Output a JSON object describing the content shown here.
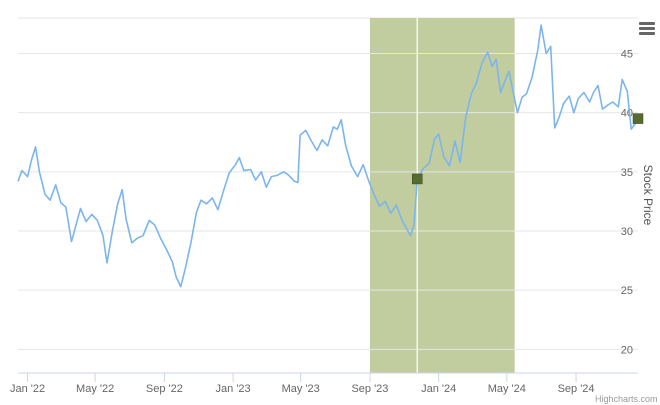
{
  "chart_data": {
    "type": "line",
    "title": "",
    "xlabel": "",
    "ylabel": "Stock Price",
    "ylim": [
      18,
      48
    ],
    "xlim": [
      "2021-12-15",
      "2024-12-20"
    ],
    "grid": "horizontal",
    "x_ticks": [
      {
        "date": "2022-01-01",
        "label": "Jan '22"
      },
      {
        "date": "2022-05-01",
        "label": "May '22"
      },
      {
        "date": "2022-09-01",
        "label": "Sep '22"
      },
      {
        "date": "2023-01-01",
        "label": "Jan '23"
      },
      {
        "date": "2023-05-01",
        "label": "May '23"
      },
      {
        "date": "2023-09-01",
        "label": "Sep '23"
      },
      {
        "date": "2024-01-01",
        "label": "Jan '24"
      },
      {
        "date": "2024-05-01",
        "label": "May '24"
      },
      {
        "date": "2024-09-01",
        "label": "Sep '24"
      }
    ],
    "y_ticks": [
      20,
      25,
      30,
      35,
      40,
      45
    ],
    "highlight_band": {
      "from": "2023-09-01",
      "to": "2024-05-15",
      "color": "#c1cd9f"
    },
    "vertical_marker": "2023-11-24",
    "markers": [
      {
        "date": "2023-11-24",
        "value": 34.4,
        "color": "#556b2f"
      },
      {
        "date": "2024-12-20",
        "value": 39.5,
        "color": "#556b2f"
      }
    ],
    "series": [
      {
        "color": "#7cb5ec",
        "points": [
          [
            "2021-12-15",
            34.2
          ],
          [
            "2021-12-22",
            35.1
          ],
          [
            "2022-01-01",
            34.6
          ],
          [
            "2022-01-08",
            36.0
          ],
          [
            "2022-01-15",
            37.1
          ],
          [
            "2022-01-22",
            35.0
          ],
          [
            "2022-02-01",
            33.1
          ],
          [
            "2022-02-10",
            32.6
          ],
          [
            "2022-02-20",
            33.9
          ],
          [
            "2022-03-01",
            32.4
          ],
          [
            "2022-03-10",
            32.0
          ],
          [
            "2022-03-20",
            29.1
          ],
          [
            "2022-03-28",
            30.5
          ],
          [
            "2022-04-05",
            31.9
          ],
          [
            "2022-04-15",
            30.8
          ],
          [
            "2022-04-25",
            31.4
          ],
          [
            "2022-05-05",
            30.9
          ],
          [
            "2022-05-15",
            29.6
          ],
          [
            "2022-05-22",
            27.3
          ],
          [
            "2022-06-01",
            30.1
          ],
          [
            "2022-06-10",
            32.3
          ],
          [
            "2022-06-18",
            33.5
          ],
          [
            "2022-06-25",
            31.0
          ],
          [
            "2022-07-05",
            29.0
          ],
          [
            "2022-07-15",
            29.4
          ],
          [
            "2022-07-25",
            29.6
          ],
          [
            "2022-08-05",
            30.9
          ],
          [
            "2022-08-15",
            30.5
          ],
          [
            "2022-08-25",
            29.4
          ],
          [
            "2022-09-05",
            28.4
          ],
          [
            "2022-09-15",
            27.4
          ],
          [
            "2022-09-22",
            26.1
          ],
          [
            "2022-09-30",
            25.3
          ],
          [
            "2022-10-08",
            26.8
          ],
          [
            "2022-10-18",
            29.0
          ],
          [
            "2022-10-28",
            31.6
          ],
          [
            "2022-11-05",
            32.6
          ],
          [
            "2022-11-15",
            32.3
          ],
          [
            "2022-11-25",
            32.8
          ],
          [
            "2022-12-05",
            31.8
          ],
          [
            "2022-12-15",
            33.4
          ],
          [
            "2022-12-25",
            34.9
          ],
          [
            "2023-01-05",
            35.6
          ],
          [
            "2023-01-12",
            36.2
          ],
          [
            "2023-01-20",
            35.1
          ],
          [
            "2023-02-01",
            35.2
          ],
          [
            "2023-02-10",
            34.3
          ],
          [
            "2023-02-20",
            35.0
          ],
          [
            "2023-03-01",
            33.7
          ],
          [
            "2023-03-10",
            34.6
          ],
          [
            "2023-03-20",
            34.7
          ],
          [
            "2023-04-01",
            35.0
          ],
          [
            "2023-04-10",
            34.7
          ],
          [
            "2023-04-20",
            34.2
          ],
          [
            "2023-04-26",
            34.1
          ],
          [
            "2023-04-30",
            38.1
          ],
          [
            "2023-05-10",
            38.5
          ],
          [
            "2023-05-20",
            37.6
          ],
          [
            "2023-05-30",
            36.8
          ],
          [
            "2023-06-08",
            37.7
          ],
          [
            "2023-06-18",
            37.2
          ],
          [
            "2023-06-28",
            38.8
          ],
          [
            "2023-07-05",
            38.6
          ],
          [
            "2023-07-12",
            39.4
          ],
          [
            "2023-07-20",
            37.2
          ],
          [
            "2023-07-30",
            35.5
          ],
          [
            "2023-08-10",
            34.6
          ],
          [
            "2023-08-20",
            35.6
          ],
          [
            "2023-08-30",
            34.2
          ],
          [
            "2023-09-08",
            33.1
          ],
          [
            "2023-09-18",
            32.1
          ],
          [
            "2023-09-28",
            32.5
          ],
          [
            "2023-10-08",
            31.5
          ],
          [
            "2023-10-18",
            32.2
          ],
          [
            "2023-10-28",
            30.9
          ],
          [
            "2023-11-05",
            30.2
          ],
          [
            "2023-11-12",
            29.6
          ],
          [
            "2023-11-18",
            30.5
          ],
          [
            "2023-11-24",
            34.4
          ],
          [
            "2023-12-05",
            35.3
          ],
          [
            "2023-12-15",
            35.7
          ],
          [
            "2023-12-25",
            37.8
          ],
          [
            "2024-01-01",
            38.2
          ],
          [
            "2024-01-10",
            36.3
          ],
          [
            "2024-01-20",
            35.5
          ],
          [
            "2024-01-30",
            37.6
          ],
          [
            "2024-02-08",
            35.8
          ],
          [
            "2024-02-18",
            39.6
          ],
          [
            "2024-02-28",
            41.6
          ],
          [
            "2024-03-08",
            42.5
          ],
          [
            "2024-03-18",
            44.2
          ],
          [
            "2024-03-28",
            45.1
          ],
          [
            "2024-04-05",
            43.9
          ],
          [
            "2024-04-12",
            44.5
          ],
          [
            "2024-04-20",
            41.7
          ],
          [
            "2024-04-28",
            42.7
          ],
          [
            "2024-05-05",
            43.5
          ],
          [
            "2024-05-12",
            41.8
          ],
          [
            "2024-05-20",
            40.0
          ],
          [
            "2024-05-28",
            41.3
          ],
          [
            "2024-06-05",
            41.6
          ],
          [
            "2024-06-15",
            43.0
          ],
          [
            "2024-06-25",
            45.3
          ],
          [
            "2024-07-01",
            47.4
          ],
          [
            "2024-07-10",
            45.0
          ],
          [
            "2024-07-18",
            45.6
          ],
          [
            "2024-07-25",
            38.7
          ],
          [
            "2024-08-01",
            39.5
          ],
          [
            "2024-08-10",
            40.8
          ],
          [
            "2024-08-20",
            41.4
          ],
          [
            "2024-08-28",
            40.0
          ],
          [
            "2024-09-05",
            41.2
          ],
          [
            "2024-09-15",
            41.7
          ],
          [
            "2024-09-25",
            40.9
          ],
          [
            "2024-10-02",
            41.7
          ],
          [
            "2024-10-10",
            42.3
          ],
          [
            "2024-10-18",
            40.3
          ],
          [
            "2024-10-26",
            40.6
          ],
          [
            "2024-11-05",
            40.9
          ],
          [
            "2024-11-15",
            40.5
          ],
          [
            "2024-11-22",
            42.8
          ],
          [
            "2024-12-01",
            41.8
          ],
          [
            "2024-12-08",
            38.6
          ],
          [
            "2024-12-14",
            39.0
          ],
          [
            "2024-12-20",
            39.5
          ]
        ]
      }
    ]
  },
  "ui": {
    "menu_icon": "hamburger-menu-icon",
    "credits": "Highcharts.com"
  }
}
